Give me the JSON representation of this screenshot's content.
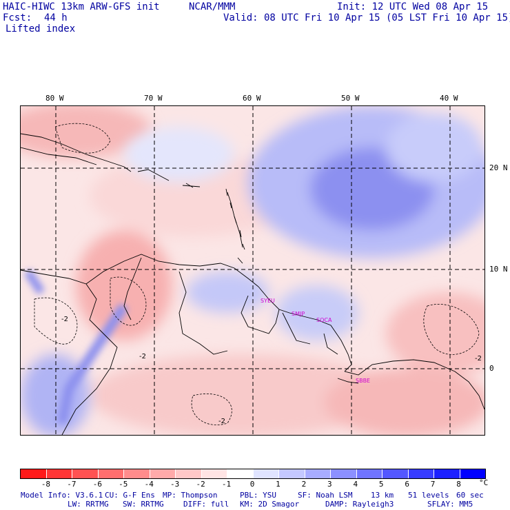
{
  "header": {
    "model_title": "HAIC-HIWC 13km ARW-GFS init",
    "org": "NCAR/MMM",
    "init": "Init: 12 UTC Wed 08 Apr 15",
    "fcst_label": "Fcst:",
    "fcst_value": "44 h",
    "valid": "Valid: 08 UTC Fri 10 Apr 15 (05 LST Fri 10 Apr 15)",
    "field": "Lifted index"
  },
  "map": {
    "lon_labels": [
      "80 W",
      "70 W",
      "60 W",
      "50 W",
      "40 W"
    ],
    "lat_labels": [
      "20 N",
      "10 N",
      "0"
    ],
    "stations": [
      "SYEU",
      "SMJP",
      "SOCA",
      "SBBE"
    ],
    "contour_labels": [
      "-2",
      "-2",
      "-2",
      "-2"
    ]
  },
  "legend": {
    "ticks": [
      "-8",
      "-7",
      "-6",
      "-5",
      "-4",
      "-3",
      "-2",
      "-1",
      "0",
      "1",
      "2",
      "3",
      "4",
      "5",
      "6",
      "7",
      "8"
    ],
    "unit": "°C",
    "colors": [
      "#ff1a1a",
      "#ff3636",
      "#ff5252",
      "#ff6e6e",
      "#ff8c8c",
      "#ffaaaa",
      "#ffc8c8",
      "#ffe4e4",
      "#ffffff",
      "#e0e4ff",
      "#c4c8ff",
      "#a8acff",
      "#8c90ff",
      "#7074ff",
      "#5458ff",
      "#383cff",
      "#1c20ff",
      "#0000ff"
    ]
  },
  "footer": {
    "line1_a": "Model Info: V3.6.1",
    "line1_b": "CU: G-F Ens",
    "line1_c": "MP: Thompson",
    "line1_d": "PBL: YSU",
    "line1_e": "SF: Noah LSM",
    "line1_f": "13 km",
    "line1_g": "51 levels",
    "line1_h": "60 sec",
    "line2_a": "LW: RRTMG",
    "line2_b": "SW: RRTMG",
    "line2_c": "DIFF: full",
    "line2_d": "KM: 2D Smagor",
    "line2_e": "DAMP: Rayleigh3",
    "line2_f": "SFLAY: MM5"
  }
}
